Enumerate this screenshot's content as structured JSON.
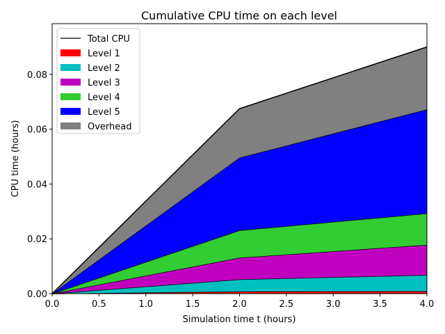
{
  "chart_data": {
    "type": "area",
    "stacked": true,
    "title": "Cumulative CPU time on each level",
    "xlabel": "Simulation time t (hours)",
    "ylabel": "CPU time (hours)",
    "xlim": [
      0,
      4
    ],
    "ylim": [
      0,
      0.0985
    ],
    "xticks": [
      "0.0",
      "0.5",
      "1.0",
      "1.5",
      "2.0",
      "2.5",
      "3.0",
      "3.5",
      "4.0"
    ],
    "yticks": [
      "0.00",
      "0.02",
      "0.04",
      "0.06",
      "0.08"
    ],
    "grid": false,
    "legend_position": "upper-left",
    "x": [
      0,
      2,
      4
    ],
    "series": [
      {
        "name": "Level 1",
        "color": "#ff0000",
        "values": [
          0,
          0.0008,
          0.0009
        ]
      },
      {
        "name": "Level 2",
        "color": "#00bfbf",
        "values": [
          0,
          0.0044,
          0.0059
        ]
      },
      {
        "name": "Level 3",
        "color": "#bf00bf",
        "values": [
          0,
          0.0079,
          0.011
        ]
      },
      {
        "name": "Level 4",
        "color": "#32cd32",
        "values": [
          0,
          0.01,
          0.0115
        ]
      },
      {
        "name": "Level 5",
        "color": "#0000ff",
        "values": [
          0,
          0.0265,
          0.0379
        ]
      },
      {
        "name": "Overhead",
        "color": "#808080",
        "values": [
          0,
          0.0179,
          0.0228
        ]
      }
    ],
    "total": {
      "name": "Total CPU",
      "color": "#000000",
      "values": [
        0,
        0.0675,
        0.09
      ]
    }
  }
}
